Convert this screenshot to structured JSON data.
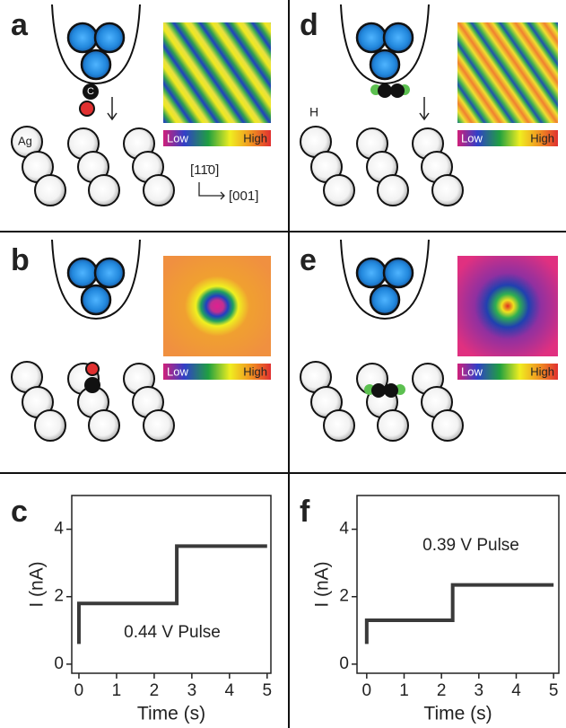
{
  "diagram": {
    "panel_labels": [
      "a",
      "b",
      "d",
      "e"
    ],
    "atom_labels": {
      "ag": "Ag",
      "c": "C",
      "h": "H"
    },
    "directions": [
      "[11̄0]",
      "[001]"
    ],
    "colorbar": {
      "low": "Low",
      "high": "High"
    }
  },
  "chart_data": [
    {
      "type": "line",
      "label": "c",
      "xlabel": "Time (s)",
      "ylabel": "I (nA)",
      "annotation": "0.44 V Pulse",
      "xlim": [
        -0.19,
        5.1
      ],
      "xticks": [
        0,
        1,
        2,
        3,
        4,
        5
      ],
      "ylim": [
        -0.27,
        5.0
      ],
      "yticks": [
        0,
        2,
        4
      ],
      "series": [
        {
          "color": "#3a3a3a",
          "x": [
            0,
            0,
            2.6,
            2.6,
            5
          ],
          "values": [
            0.6,
            1.8,
            1.8,
            3.5,
            3.5
          ]
        }
      ]
    },
    {
      "type": "line",
      "label": "f",
      "xlabel": "Time (s)",
      "ylabel": "I (nA)",
      "annotation": "0.39 V Pulse",
      "xlim": [
        -0.26,
        5.14
      ],
      "xticks": [
        0,
        1,
        2,
        3,
        4,
        5
      ],
      "ylim": [
        -0.27,
        5.0
      ],
      "yticks": [
        0,
        2,
        4
      ],
      "series": [
        {
          "color": "#3a3a3a",
          "x": [
            0,
            0,
            2.3,
            2.3,
            5
          ],
          "values": [
            0.6,
            1.3,
            1.3,
            2.35,
            2.35
          ]
        }
      ]
    }
  ]
}
